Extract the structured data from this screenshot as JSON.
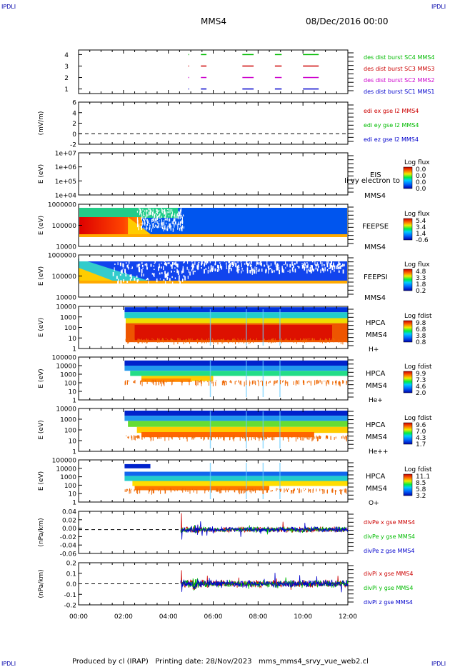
{
  "corner_labels": {
    "tl": "IPDLI",
    "tr": "IPDLI",
    "bl": "IPDLI",
    "br": "IPDLI"
  },
  "header": {
    "spacecraft": "MMS4",
    "date": "08/Dec/2016 00:00"
  },
  "footer": {
    "text": "Produced by cl (IRAP)   Printing date: 28/Nov/2023   mms_mms4_srvy_vue_web2.cl"
  },
  "time_axis": {
    "ticks": [
      "00:00",
      "02:00",
      "04:00",
      "06:00",
      "08:00",
      "10:00",
      "12:00"
    ],
    "range_hours": [
      0,
      12
    ]
  },
  "colors": {
    "blue": "#0000cc",
    "magenta": "#cc00cc",
    "red": "#cc0000",
    "green": "#00bb00"
  },
  "chart_data": [
    {
      "type": "timeline",
      "id": "burst",
      "yticks": [
        "1",
        "2",
        "3",
        "4"
      ],
      "ylim": [
        0.6,
        4.4
      ],
      "legend": [
        "des dist burst SC1 MMS1",
        "des dist burst SC2 MMS2",
        "des dist burst SC3 MMS3",
        "des dist burst SC4 MMS4"
      ],
      "legend_colors": [
        "#0000cc",
        "#cc00cc",
        "#cc0000",
        "#00bb00"
      ],
      "rows": [
        {
          "y": 4,
          "color": "#00bb00",
          "segments": [
            [
              4.89,
              4.91
            ],
            [
              5.45,
              5.7
            ],
            [
              7.3,
              7.8
            ],
            [
              8.75,
              9.05
            ],
            [
              10.0,
              10.7
            ]
          ]
        },
        {
          "y": 3,
          "color": "#cc0000",
          "segments": [
            [
              4.89,
              4.91
            ],
            [
              5.45,
              5.7
            ],
            [
              7.3,
              7.8
            ],
            [
              8.75,
              9.05
            ],
            [
              10.0,
              10.7
            ]
          ]
        },
        {
          "y": 2,
          "color": "#cc00cc",
          "segments": [
            [
              4.89,
              4.91
            ],
            [
              5.45,
              5.7
            ],
            [
              7.3,
              7.8
            ],
            [
              8.75,
              9.05
            ],
            [
              10.0,
              10.7
            ]
          ]
        },
        {
          "y": 1,
          "color": "#0000cc",
          "segments": [
            [
              4.89,
              4.91
            ],
            [
              5.45,
              5.7
            ],
            [
              7.3,
              7.8
            ],
            [
              8.75,
              9.05
            ],
            [
              10.0,
              10.7
            ]
          ]
        }
      ]
    },
    {
      "type": "line",
      "id": "edi",
      "ylabel": "(mV/m)",
      "yticks": [
        "6",
        "4",
        "2",
        "0",
        "-2"
      ],
      "ylim": [
        -2,
        6
      ],
      "legend": [
        "edi ex gse l2 MMS4",
        "edi ey gse l2 MMS4",
        "edi ez gse l2 MMS4"
      ],
      "legend_colors": [
        "#cc0000",
        "#00bb00",
        "#0000cc"
      ],
      "zero_line": true
    },
    {
      "type": "heatmap",
      "id": "eis",
      "ylabel": "E (eV)",
      "yticks": [
        "1e+07",
        "1e+06",
        "1e+05",
        "1e+04"
      ],
      "labels": [
        "EIS",
        "MMS4"
      ],
      "overlay_text": "Ii vy electron to",
      "cbar_title": "Log flux",
      "cbar_ticks": [
        "0.0",
        "0.0",
        "0.0",
        "0.0"
      ]
    },
    {
      "type": "heatmap",
      "id": "feepse",
      "ylabel": "E (eV)",
      "yticks": [
        "1000000",
        "100000",
        "10000"
      ],
      "labels": [
        "FEEPSE",
        "MMS4"
      ],
      "cbar_title": "Log flux",
      "cbar_ticks": [
        "5.4",
        "3.4",
        "1.4",
        "-0.6"
      ]
    },
    {
      "type": "heatmap",
      "id": "feepsi",
      "ylabel": "E (eV)",
      "yticks": [
        "1000000",
        "100000",
        "10000"
      ],
      "labels": [
        "FEEPSI",
        "MMS4"
      ],
      "cbar_title": "Log flux",
      "cbar_ticks": [
        "4.8",
        "3.3",
        "1.8",
        "0.2"
      ]
    },
    {
      "type": "heatmap",
      "id": "hpca_h",
      "ylabel": "E (eV)",
      "yticks": [
        "10000",
        "1000",
        "100",
        "10",
        "1"
      ],
      "labels": [
        "HPCA",
        "MMS4",
        "H+"
      ],
      "cbar_title": "Log fdist",
      "cbar_ticks": [
        "9.8",
        "6.8",
        "3.8",
        "0.8"
      ]
    },
    {
      "type": "heatmap",
      "id": "hpca_he",
      "ylabel": "E (eV)",
      "yticks": [
        "100000",
        "10000",
        "1000",
        "100",
        "10",
        "1"
      ],
      "labels": [
        "HPCA",
        "MMS4",
        "He+"
      ],
      "cbar_title": "Log fdist",
      "cbar_ticks": [
        "9.9",
        "7.3",
        "4.6",
        "2.0"
      ]
    },
    {
      "type": "heatmap",
      "id": "hpca_hepp",
      "ylabel": "E (eV)",
      "yticks": [
        "10000",
        "1000",
        "100",
        "10",
        "1"
      ],
      "labels": [
        "HPCA",
        "MMS4",
        "He++"
      ],
      "cbar_title": "Log fdist",
      "cbar_ticks": [
        "9.6",
        "7.0",
        "4.3",
        "1.7"
      ]
    },
    {
      "type": "heatmap",
      "id": "hpca_o",
      "ylabel": "E (eV)",
      "yticks": [
        "100000",
        "10000",
        "1000",
        "100",
        "10",
        "1"
      ],
      "labels": [
        "HPCA",
        "MMS4",
        "O+"
      ],
      "cbar_title": "Log fdist",
      "cbar_ticks": [
        "11.1",
        "8.5",
        "5.8",
        "3.2"
      ]
    },
    {
      "type": "line",
      "id": "divpe",
      "ylabel": "(nPa/km)",
      "yticks": [
        "0.04",
        "0.02",
        "0.00",
        "-0.02",
        "-0.04",
        "-0.06"
      ],
      "ylim": [
        -0.065,
        0.05
      ],
      "legend": [
        "divPe x gse MMS4",
        "divPe y gse MMS4",
        "divPe z gse MMS4"
      ],
      "legend_colors": [
        "#cc0000",
        "#00bb00",
        "#0000cc"
      ],
      "zero_line": true,
      "data_start_hour": 4.55,
      "amplitude": 0.006,
      "spike": 0.045
    },
    {
      "type": "line",
      "id": "divpi",
      "ylabel": "(nPa/km)",
      "yticks": [
        "0.2",
        "0.1",
        "0.0",
        "-0.1",
        "-0.2"
      ],
      "ylim": [
        -0.28,
        0.28
      ],
      "legend": [
        "divPi x gse MMS4",
        "divPi y gse MMS4",
        "divPi z gse MMS4"
      ],
      "legend_colors": [
        "#cc0000",
        "#00bb00",
        "#0000cc"
      ],
      "zero_line": true,
      "data_start_hour": 4.55,
      "amplitude": 0.04,
      "spike": 0.18
    }
  ]
}
